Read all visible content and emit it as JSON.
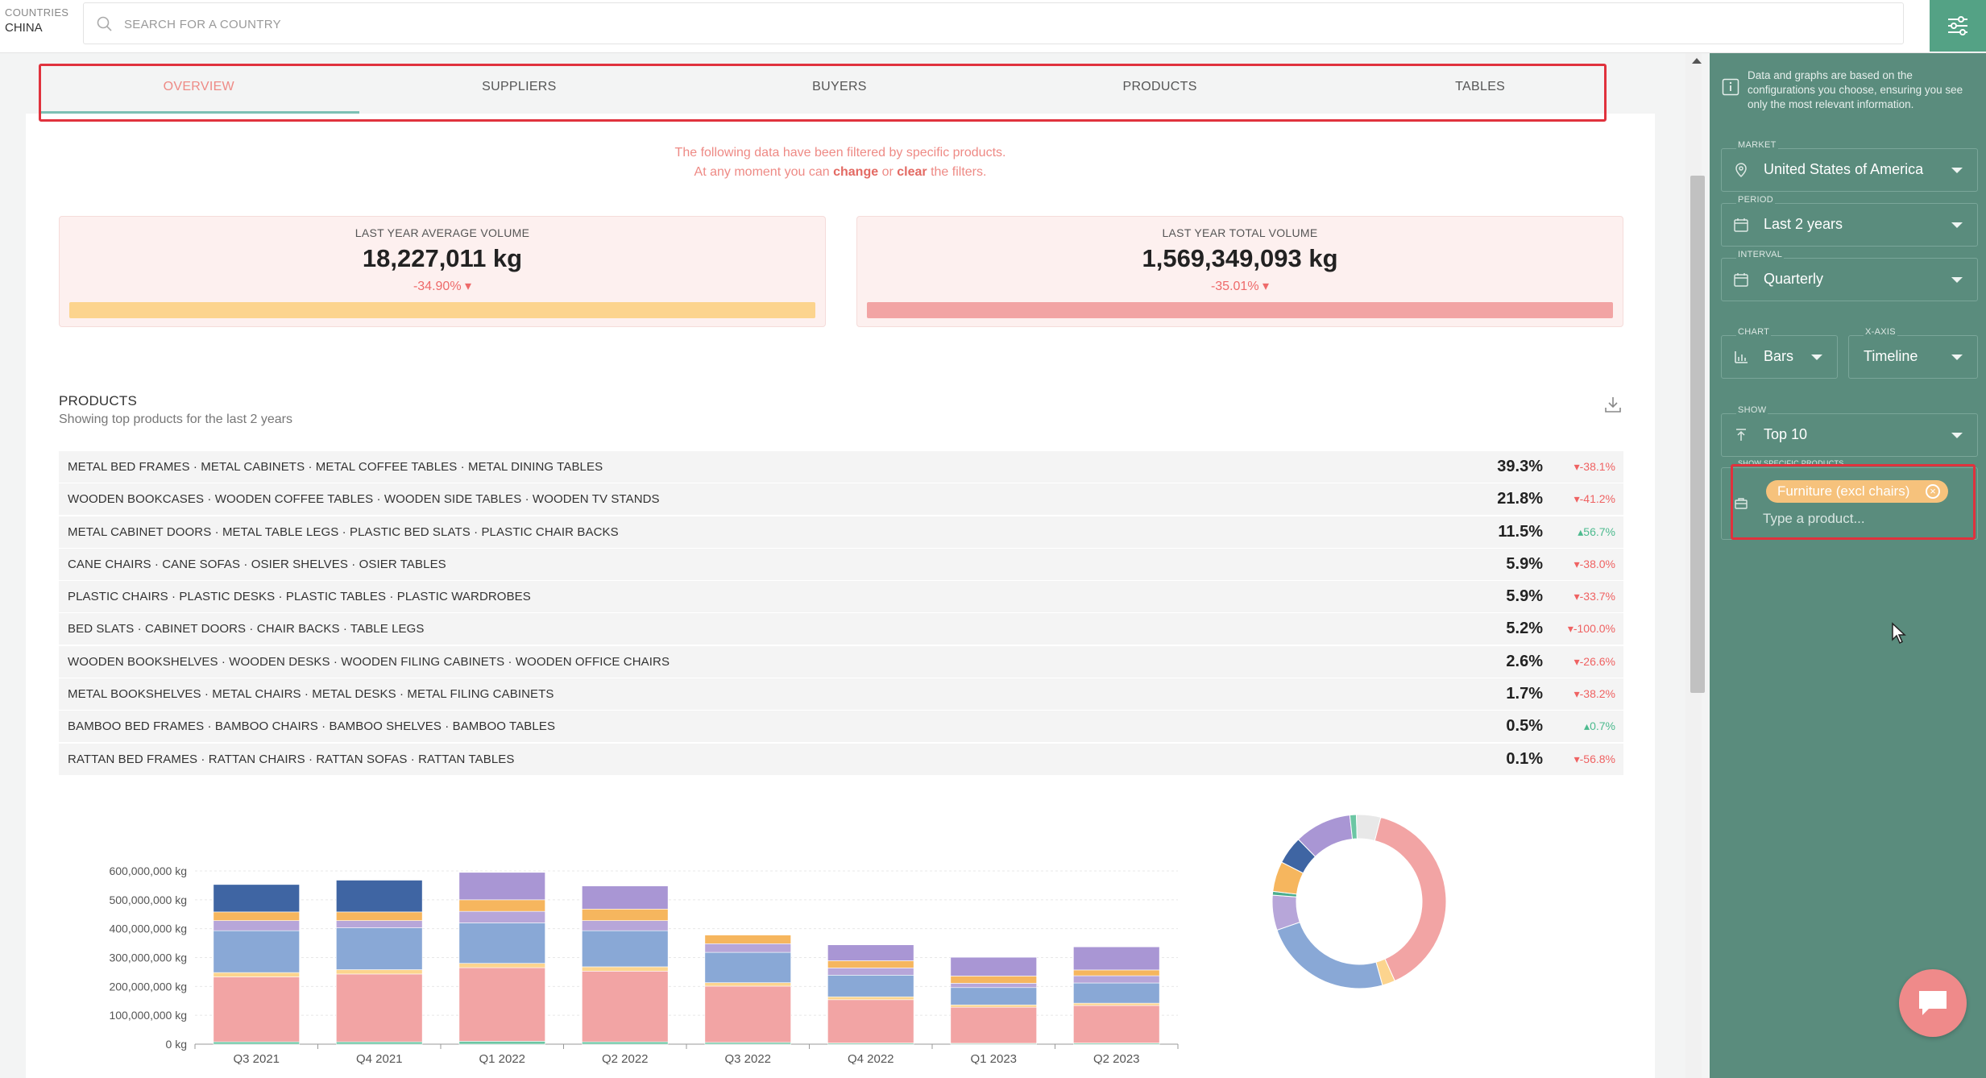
{
  "header": {
    "country_label": "COUNTRIES",
    "country_value": "CHINA",
    "search_placeholder": "SEARCH FOR A COUNTRY"
  },
  "tabs": [
    "OVERVIEW",
    "SUPPLIERS",
    "BUYERS",
    "PRODUCTS",
    "TABLES"
  ],
  "active_tab": "OVERVIEW",
  "filter_note": {
    "line1": "The following data have been filtered by specific products.",
    "line2_pre": "At any moment you can",
    "change": "change",
    "or": "or",
    "clear": "clear",
    "line2_post": "the filters."
  },
  "kpis": [
    {
      "title": "LAST YEAR AVERAGE VOLUME",
      "value": "18,227,011 kg",
      "delta": "-34.90%",
      "bar_color": "#fcd48e"
    },
    {
      "title": "LAST YEAR TOTAL VOLUME",
      "value": "1,569,349,093 kg",
      "delta": "-35.01%",
      "bar_color": "#f2a4a4"
    }
  ],
  "products": {
    "title": "PRODUCTS",
    "subtitle": "Showing top products for the last 2 years",
    "rows": [
      {
        "name": "METAL BED FRAMES · METAL CABINETS · METAL COFFEE TABLES · METAL DINING TABLES",
        "share": "39.3%",
        "change": "-38.1%",
        "dir": "down"
      },
      {
        "name": "WOODEN BOOKCASES · WOODEN COFFEE TABLES · WOODEN SIDE TABLES · WOODEN TV STANDS",
        "share": "21.8%",
        "change": "-41.2%",
        "dir": "down"
      },
      {
        "name": "METAL CABINET DOORS · METAL TABLE LEGS · PLASTIC BED SLATS · PLASTIC CHAIR BACKS",
        "share": "11.5%",
        "change": "56.7%",
        "dir": "up"
      },
      {
        "name": "CANE CHAIRS · CANE SOFAS · OSIER SHELVES · OSIER TABLES",
        "share": "5.9%",
        "change": "-38.0%",
        "dir": "down"
      },
      {
        "name": "PLASTIC CHAIRS · PLASTIC DESKS · PLASTIC TABLES · PLASTIC WARDROBES",
        "share": "5.9%",
        "change": "-33.7%",
        "dir": "down"
      },
      {
        "name": "BED SLATS · CABINET DOORS · CHAIR BACKS · TABLE LEGS",
        "share": "5.2%",
        "change": "-100.0%",
        "dir": "down"
      },
      {
        "name": "WOODEN BOOKSHELVES · WOODEN DESKS · WOODEN FILING CABINETS · WOODEN OFFICE CHAIRS",
        "share": "2.6%",
        "change": "-26.6%",
        "dir": "down"
      },
      {
        "name": "METAL BOOKSHELVES · METAL CHAIRS · METAL DESKS · METAL FILING CABINETS",
        "share": "1.7%",
        "change": "-38.2%",
        "dir": "down"
      },
      {
        "name": "BAMBOO BED FRAMES · BAMBOO CHAIRS · BAMBOO SHELVES · BAMBOO TABLES",
        "share": "0.5%",
        "change": "0.7%",
        "dir": "up"
      },
      {
        "name": "RATTAN BED FRAMES · RATTAN CHAIRS · RATTAN SOFAS · RATTAN TABLES",
        "share": "0.1%",
        "change": "-56.8%",
        "dir": "down"
      }
    ]
  },
  "chart_data": [
    {
      "type": "bar",
      "stacked": true,
      "categories": [
        "Q3 2021",
        "Q4 2021",
        "Q1 2022",
        "Q2 2022",
        "Q3 2022",
        "Q4 2022",
        "Q1 2023",
        "Q2 2023"
      ],
      "yticks": [
        "0 kg",
        "100,000,000 kg",
        "200,000,000 kg",
        "300,000,000 kg",
        "400,000,000 kg",
        "500,000,000 kg",
        "600,000,000 kg"
      ],
      "ylim": [
        0,
        600000000
      ],
      "series": [
        {
          "color": "#6cc6a4",
          "values": [
            8000000,
            8000000,
            10000000,
            8000000,
            6000000,
            4000000,
            3000000,
            4000000
          ]
        },
        {
          "color": "#f2a4a4",
          "values": [
            225000000,
            235000000,
            255000000,
            245000000,
            195000000,
            150000000,
            125000000,
            130000000
          ]
        },
        {
          "color": "#fcd48e",
          "values": [
            15000000,
            15000000,
            15000000,
            15000000,
            12000000,
            10000000,
            8000000,
            8000000
          ]
        },
        {
          "color": "#89a8d6",
          "values": [
            145000000,
            145000000,
            140000000,
            125000000,
            105000000,
            75000000,
            60000000,
            70000000
          ]
        },
        {
          "color": "#b7a6d9",
          "values": [
            35000000,
            25000000,
            40000000,
            35000000,
            30000000,
            25000000,
            15000000,
            25000000
          ]
        },
        {
          "color": "#f6b65e",
          "values": [
            30000000,
            30000000,
            40000000,
            40000000,
            30000000,
            25000000,
            25000000,
            20000000
          ]
        },
        {
          "color": "#a996d4",
          "values": [
            0,
            0,
            95000000,
            80000000,
            0,
            55000000,
            65000000,
            80000000
          ]
        },
        {
          "color": "#3f65a3",
          "values": [
            95000000,
            110000000,
            0,
            0,
            0,
            0,
            0,
            0
          ]
        }
      ]
    },
    {
      "type": "pie",
      "donut": true,
      "slices": [
        {
          "value": 39.3,
          "color": "#f2a4a4"
        },
        {
          "value": 2.4,
          "color": "#fcd48e"
        },
        {
          "value": 24.0,
          "color": "#89a8d6"
        },
        {
          "value": 6.5,
          "color": "#b7a6d9"
        },
        {
          "value": 0.7,
          "color": "#4cae8e"
        },
        {
          "value": 5.6,
          "color": "#f6b65e"
        },
        {
          "value": 5.2,
          "color": "#3f65a3"
        },
        {
          "value": 10.6,
          "color": "#a996d4"
        },
        {
          "value": 1.2,
          "color": "#6cc6a4"
        },
        {
          "value": 4.5,
          "color": "#e8e8e8"
        }
      ]
    }
  ],
  "sidebar": {
    "info": "Data and graphs are based on the configurations you choose, ensuring you see only the most relevant information.",
    "market_label": "MARKET",
    "market_value": "United States of America",
    "period_label": "PERIOD",
    "period_value": "Last 2 years",
    "interval_label": "INTERVAL",
    "interval_value": "Quarterly",
    "chart_label": "CHART",
    "chart_value": "Bars",
    "xaxis_label": "X-AXIS",
    "xaxis_value": "Timeline",
    "show_label": "SHOW",
    "show_value": "Top 10",
    "specific_label": "SHOW SPECIFIC PRODUCTS",
    "chip": "Furniture (excl chairs)",
    "type_placeholder": "Type a product..."
  }
}
